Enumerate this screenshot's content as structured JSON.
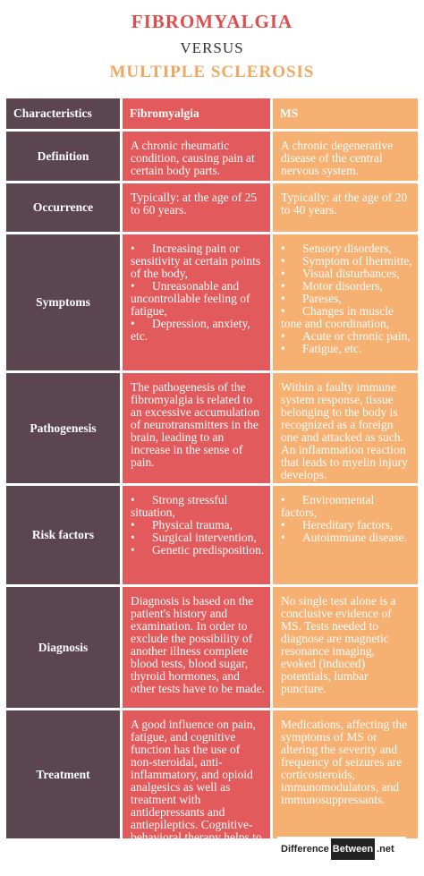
{
  "titles": {
    "first": "FIBROMYALGIA",
    "versus": "VERSUS",
    "second": "MULTIPLE SCLEROSIS"
  },
  "colors": {
    "characteristics": "#5b464f",
    "fibromyalgia": "#e25a5c",
    "ms": "#f5b072",
    "title_first": "#e14c4c",
    "title_second": "#f0a860"
  },
  "header": {
    "characteristics": "Characteristics",
    "fibromyalgia": "Fibromyalgia",
    "ms": "MS"
  },
  "rows": [
    {
      "label": "Definition",
      "fibromyalgia": "A chronic rheumatic condition, causing pain at certain body parts.",
      "ms": "A chronic degenerative disease of the central nervous system."
    },
    {
      "label": "Occurrence",
      "fibromyalgia": "Typically: at the age of 25 to 60 years.",
      "ms": "Typically: at the age of 20 to 40 years."
    },
    {
      "label": "Symptoms",
      "fibromyalgia_list": [
        "Increasing pain or sensitivity at certain points of the body,",
        "Unreasonable and uncontrollable feeling of fatigue,",
        "Depression, anxiety, etc."
      ],
      "ms_list": [
        "Sensory disorders,",
        "Symptom of lhermitte,",
        "Visual disturbances,",
        "Motor disorders,",
        "Pareses,",
        "Changes in muscle tone and coordination,",
        "Acute or chronic pain,",
        "Fatigue, etc."
      ]
    },
    {
      "label": "Pathogenesis",
      "fibromyalgia": "The pathogenesis of the fibromyalgia is related to an excessive accumulation of neurotransmitters in the brain, leading to an increase in the sense of pain.",
      "ms": "Within a faulty immune system response, tissue belonging to the body is recognized as a foreign one and attacked as such. An inflammation reaction that leads to myelin injury develops."
    },
    {
      "label": "Risk factors",
      "fibromyalgia_list": [
        "Strong stressful situation,",
        "Physical trauma,",
        "Surgical intervention,",
        "Genetic predisposition."
      ],
      "ms_list": [
        "Environmental factors,",
        "Hereditary factors,",
        "Autoimmune disease."
      ]
    },
    {
      "label": "Diagnosis",
      "fibromyalgia": "Diagnosis is based on the patient's history and examination. In order to exclude the possibility of another illness complete blood tests, blood sugar, thyroid hormones, and other tests have to be made.",
      "ms": "No single test alone is a conclusive evidence of MS. Tests needed to diagnose are magnetic resonance imaging, evoked (induced) potentials, lumbar puncture."
    },
    {
      "label": "Treatment",
      "fibromyalgia": "A good influence on pain, fatigue, and cognitive function has the use of non-steroidal, anti-inflammatory, and opioid analgesics as well as treatment with antidepressants and antiepileptics. Cognitive-behavioral therapy helps to control stress.",
      "ms": "Medications, affecting the symptoms of MS or altering the severity and frequency of seizures are corticosteroids, immunomodulators, and immunosuppressants."
    }
  ],
  "logo": {
    "part1": "Difference",
    "part2": "Between",
    "part3": ".net"
  }
}
